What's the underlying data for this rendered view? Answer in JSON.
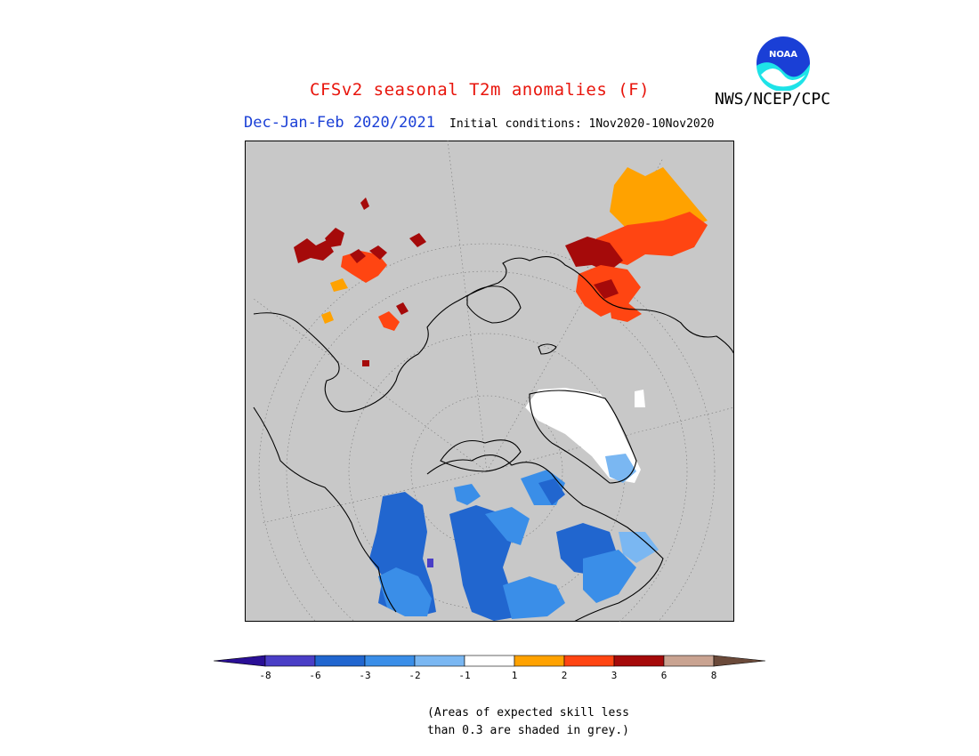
{
  "header": {
    "title": "CFSv2 seasonal T2m anomalies (F)",
    "org": "NWS/NCEP/CPC",
    "season": "Dec-Jan-Feb 2020/2021",
    "initial_conditions": "Initial conditions: 1Nov2020-10Nov2020",
    "logo_text": "NOAA"
  },
  "colors": {
    "title": "#e8150c",
    "season": "#1a3fd6",
    "land_grey": "#c8c8c8"
  },
  "colorbar": {
    "ticks": [
      "-8",
      "-6",
      "-3",
      "-2",
      "-1",
      "1",
      "2",
      "3",
      "6",
      "8"
    ],
    "bins": [
      {
        "range": "< -8",
        "color": "#2a0f96"
      },
      {
        "range": "-8 to -6",
        "color": "#4a3ec6"
      },
      {
        "range": "-6 to -3",
        "color": "#2166cf"
      },
      {
        "range": "-3 to -2",
        "color": "#3a8ee8"
      },
      {
        "range": "-2 to -1",
        "color": "#7ab7f2"
      },
      {
        "range": "-1 to 1",
        "color": "#ffffff"
      },
      {
        "range": "1 to 2",
        "color": "#ffa200"
      },
      {
        "range": "2 to 3",
        "color": "#ff4512"
      },
      {
        "range": "3 to 6",
        "color": "#a50a0a"
      },
      {
        "range": "6 to 8",
        "color": "#c9a391"
      },
      {
        "range": "> 8",
        "color": "#6b4a3a"
      }
    ]
  },
  "note": {
    "line1": "(Areas of expected skill less",
    "line2": "than 0.3 are shaded in grey.)"
  },
  "map": {
    "projection": "north-polar-stereographic",
    "regions": [
      {
        "name": "Eastern Europe / Western Russia",
        "category": "3 to 6"
      },
      {
        "name": "Turkey / Middle East",
        "category": "2 to 3"
      },
      {
        "name": "Central Siberia",
        "category": "2 to 3"
      },
      {
        "name": "Greenland",
        "category": "-1 to 1"
      },
      {
        "name": "Western Canada",
        "category": "-3 to -2"
      },
      {
        "name": "Central Canada",
        "category": "-3 to -2"
      },
      {
        "name": "Quebec / Labrador",
        "category": "-3 to -2"
      },
      {
        "name": "Canadian Arctic Archipelago",
        "category": "-3 to -2"
      }
    ]
  }
}
